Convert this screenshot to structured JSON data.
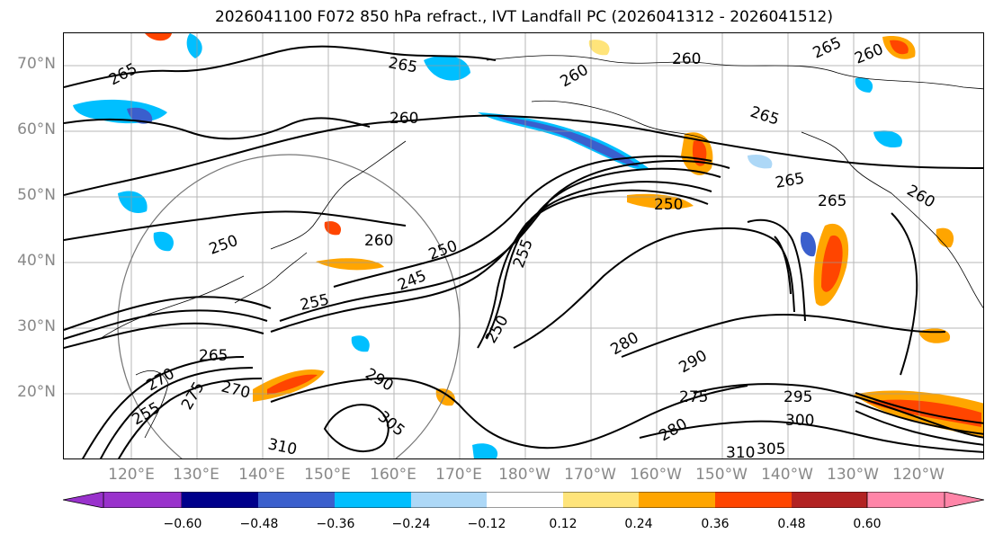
{
  "title": "2026041100 F072 850 hPa refract., IVT Landfall PC (2026041312 - 2026041512)",
  "lat_labels": [
    "70°N",
    "60°N",
    "50°N",
    "40°N",
    "30°N",
    "20°N"
  ],
  "lon_labels": [
    "120°E",
    "130°E",
    "140°E",
    "150°E",
    "160°E",
    "170°E",
    "180°W",
    "170°W",
    "160°W",
    "150°W",
    "140°W",
    "130°W",
    "120°W"
  ],
  "colorbar": {
    "ticks": [
      "−0.60",
      "−0.48",
      "−0.36",
      "−0.24",
      "−0.12",
      "0.12",
      "0.24",
      "0.36",
      "0.48",
      "0.60"
    ],
    "colors": [
      "#9932cc",
      "#00008b",
      "#3a5fcd",
      "#00bfff",
      "#add8f7",
      "#ffffff",
      "#ffe47a",
      "#ffa500",
      "#ff4500",
      "#b22222",
      "#ff85a8"
    ]
  },
  "contour_labels": [
    "265",
    "260",
    "265",
    "265",
    "260",
    "260",
    "265",
    "265",
    "260",
    "250",
    "260",
    "250",
    "245",
    "255",
    "255",
    "250",
    "280",
    "290",
    "275",
    "295",
    "300",
    "305",
    "310",
    "280",
    "290",
    "305",
    "310",
    "270",
    "275",
    "265",
    "270",
    "265",
    "255",
    "250",
    "260"
  ]
}
